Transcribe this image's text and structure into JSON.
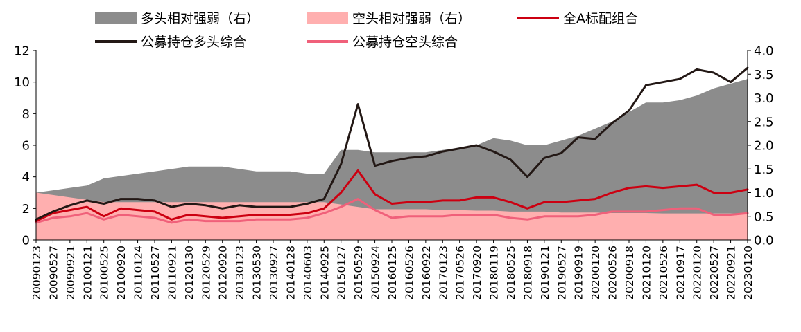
{
  "chart_data": {
    "type": "area",
    "title": "",
    "colors": {
      "long_rs": "#8c8c8c",
      "short_rs": "#ffafaf",
      "all_a": "#cc0011",
      "fund_long": "#231815",
      "fund_short": "#f0607a"
    },
    "legend": [
      {
        "key": "long_rs",
        "name": "多头相对强弱（右）",
        "kind": "area"
      },
      {
        "key": "short_rs",
        "name": "空头相对强弱（右）",
        "kind": "area"
      },
      {
        "key": "all_a",
        "name": "全A标配组合",
        "kind": "line"
      },
      {
        "key": "fund_long",
        "name": "公募持仓多头综合",
        "kind": "line"
      },
      {
        "key": "fund_short",
        "name": "公募持仓空头综合",
        "kind": "line"
      }
    ],
    "y_left": {
      "min": 0,
      "max": 12,
      "ticks": [
        "0",
        "2",
        "4",
        "6",
        "8",
        "10",
        "12"
      ]
    },
    "y_right": {
      "min": 0,
      "max": 4,
      "ticks": [
        "0.0",
        "0.5",
        "1.0",
        "1.5",
        "2.0",
        "2.5",
        "3.0",
        "3.5",
        "4.0"
      ]
    },
    "x_ticks": [
      "20090123",
      "20090527",
      "20090921",
      "20100121",
      "20100525",
      "20100920",
      "20110124",
      "20110527",
      "20110921",
      "20120130",
      "20120529",
      "20120920",
      "20130123",
      "20130530",
      "20130927",
      "20140128",
      "20140603",
      "20140925",
      "20150127",
      "20150529",
      "20150924",
      "20160125",
      "20160526",
      "20160922",
      "20170123",
      "20170526",
      "20170920",
      "20180119",
      "20180525",
      "20180918",
      "20190121",
      "20190527",
      "20190919",
      "20200120",
      "20200526",
      "20200918",
      "20210120",
      "20210526",
      "20210917",
      "20220120",
      "20220527",
      "20220921",
      "20230120"
    ],
    "series": [
      {
        "key": "long_rs",
        "axis": "right",
        "name": "多头相对强弱（右）",
        "values": [
          1.0,
          1.05,
          1.1,
          1.15,
          1.3,
          1.35,
          1.4,
          1.45,
          1.5,
          1.55,
          1.55,
          1.55,
          1.5,
          1.45,
          1.45,
          1.45,
          1.4,
          1.4,
          1.9,
          1.9,
          1.85,
          1.85,
          1.85,
          1.85,
          1.9,
          1.95,
          2.0,
          2.15,
          2.1,
          2.0,
          2.0,
          2.1,
          2.2,
          2.35,
          2.5,
          2.7,
          2.9,
          2.9,
          2.95,
          3.05,
          3.2,
          3.3,
          3.4
        ]
      },
      {
        "key": "short_rs",
        "axis": "right",
        "name": "空头相对强弱（右）",
        "values": [
          1.0,
          0.95,
          0.9,
          0.85,
          0.8,
          0.8,
          0.8,
          0.8,
          0.8,
          0.8,
          0.8,
          0.8,
          0.8,
          0.8,
          0.8,
          0.8,
          0.8,
          0.8,
          0.75,
          0.7,
          0.65,
          0.65,
          0.65,
          0.65,
          0.63,
          0.63,
          0.62,
          0.62,
          0.6,
          0.6,
          0.6,
          0.58,
          0.58,
          0.58,
          0.57,
          0.57,
          0.57,
          0.56,
          0.56,
          0.56,
          0.56,
          0.56,
          0.55
        ]
      },
      {
        "key": "all_a",
        "axis": "left",
        "name": "全A标配组合",
        "values": [
          1.2,
          1.7,
          1.9,
          2.1,
          1.5,
          2.0,
          1.9,
          1.8,
          1.3,
          1.6,
          1.5,
          1.4,
          1.5,
          1.6,
          1.6,
          1.6,
          1.7,
          2.0,
          3.0,
          4.4,
          2.9,
          2.3,
          2.4,
          2.4,
          2.5,
          2.5,
          2.7,
          2.7,
          2.4,
          2.0,
          2.4,
          2.4,
          2.5,
          2.6,
          3.0,
          3.3,
          3.4,
          3.3,
          3.4,
          3.5,
          3.0,
          3.0,
          3.2
        ]
      },
      {
        "key": "fund_long",
        "axis": "left",
        "name": "公募持仓多头综合",
        "values": [
          1.3,
          1.8,
          2.2,
          2.5,
          2.3,
          2.6,
          2.6,
          2.5,
          2.1,
          2.3,
          2.2,
          2.0,
          2.2,
          2.1,
          2.1,
          2.1,
          2.3,
          2.6,
          4.8,
          8.6,
          4.7,
          5.0,
          5.2,
          5.3,
          5.6,
          5.8,
          6.0,
          5.6,
          5.1,
          4.0,
          5.2,
          5.5,
          6.5,
          6.4,
          7.4,
          8.2,
          9.8,
          10.0,
          10.2,
          10.8,
          10.6,
          10.0,
          10.9
        ]
      },
      {
        "key": "fund_short",
        "axis": "left",
        "name": "公募持仓空头综合",
        "values": [
          1.1,
          1.4,
          1.5,
          1.7,
          1.3,
          1.6,
          1.5,
          1.4,
          1.1,
          1.3,
          1.2,
          1.2,
          1.2,
          1.3,
          1.3,
          1.3,
          1.4,
          1.7,
          2.1,
          2.6,
          1.9,
          1.4,
          1.5,
          1.5,
          1.5,
          1.6,
          1.6,
          1.6,
          1.4,
          1.3,
          1.5,
          1.5,
          1.5,
          1.6,
          1.8,
          1.8,
          1.8,
          1.9,
          2.0,
          2.0,
          1.6,
          1.6,
          1.7
        ]
      }
    ]
  }
}
